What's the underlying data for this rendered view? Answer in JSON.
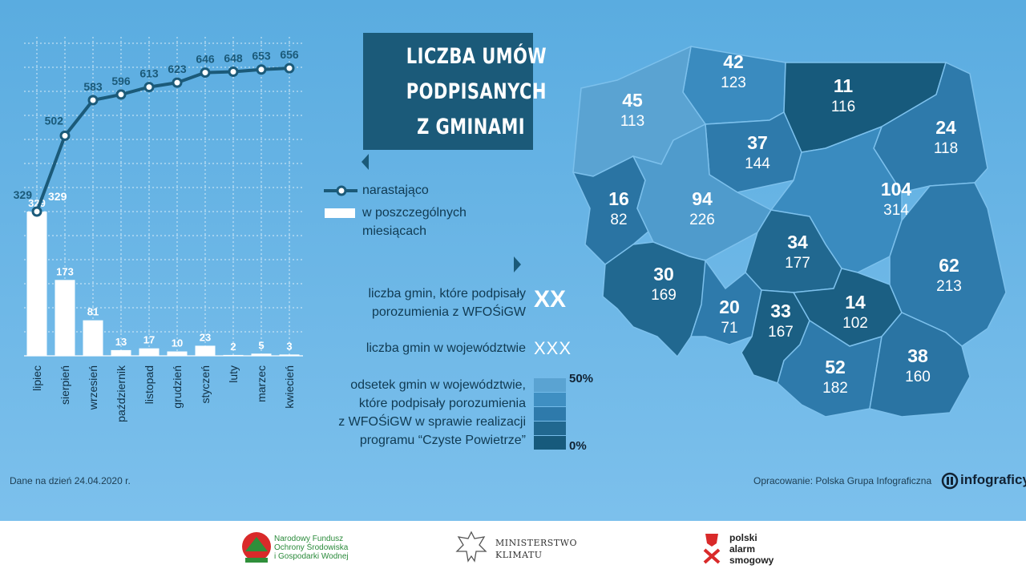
{
  "title_lines": [
    "LICZBA UMÓW",
    "PODPISANYCH",
    "Z GMINAMI"
  ],
  "legend": {
    "cumulative_label": "narastająco",
    "monthly_label_1": "w poszczególnych",
    "monthly_label_2": "miesiącach",
    "signed_label_1": "liczba gmin, które podpisały",
    "signed_label_2": "porozumienia z WFOŚiGW",
    "signed_symbol": "XX",
    "total_label": "liczba gmin w województwie",
    "total_symbol": "XXX",
    "pct_label_1": "odsetek gmin w województwie,",
    "pct_label_2": "które podpisały porozumienia",
    "pct_label_3": "z WFOŚiGW w sprawie realizacji",
    "pct_label_4": "programu “Czyste Powietrze”",
    "scale_max": "50%",
    "scale_min": "0%",
    "colors": [
      "#5aa3d2",
      "#3f8fc2",
      "#2e7aab",
      "#216890",
      "#175a7c"
    ]
  },
  "chart_data": {
    "type": "bar+line",
    "categories": [
      "lipiec",
      "sierpień",
      "wrzesień",
      "październik",
      "listopad",
      "grudzień",
      "styczeń",
      "luty",
      "marzec",
      "kwiecień"
    ],
    "series": [
      {
        "name": "w poszczególnych miesiącach",
        "type": "bar",
        "values": [
          329,
          173,
          81,
          13,
          17,
          10,
          23,
          2,
          5,
          3
        ]
      },
      {
        "name": "narastająco",
        "type": "line",
        "values": [
          329,
          502,
          583,
          596,
          613,
          623,
          646,
          648,
          653,
          656
        ]
      }
    ],
    "ylim": [
      0,
      700
    ],
    "grid": true
  },
  "map_regions": [
    {
      "name": "pomorskie",
      "signed": "42",
      "total": "123",
      "color": "#3a8bbf"
    },
    {
      "name": "warmińsko-mazurskie",
      "signed": "11",
      "total": "116",
      "color": "#175a7c"
    },
    {
      "name": "zachodniopomorskie",
      "signed": "45",
      "total": "113",
      "color": "#5aa3d2"
    },
    {
      "name": "kujawsko-pomorskie",
      "signed": "37",
      "total": "144",
      "color": "#2e7aab"
    },
    {
      "name": "podlaskie",
      "signed": "24",
      "total": "118",
      "color": "#2e7aab"
    },
    {
      "name": "lubuskie",
      "signed": "16",
      "total": "82",
      "color": "#2a74a3"
    },
    {
      "name": "wielkopolskie",
      "signed": "94",
      "total": "226",
      "color": "#4f9bcc"
    },
    {
      "name": "mazowieckie",
      "signed": "104",
      "total": "314",
      "color": "#3a8bbf"
    },
    {
      "name": "łódzkie",
      "signed": "34",
      "total": "177",
      "color": "#216890"
    },
    {
      "name": "dolnośląskie",
      "signed": "30",
      "total": "169",
      "color": "#216890"
    },
    {
      "name": "opolskie",
      "signed": "20",
      "total": "71",
      "color": "#2e7aab"
    },
    {
      "name": "śląskie",
      "signed": "33",
      "total": "167",
      "color": "#1b5f83"
    },
    {
      "name": "świętokrzyskie",
      "signed": "14",
      "total": "102",
      "color": "#1b5f83"
    },
    {
      "name": "lubelskie",
      "signed": "62",
      "total": "213",
      "color": "#2e7aab"
    },
    {
      "name": "małopolskie",
      "signed": "52",
      "total": "182",
      "color": "#2e7aab"
    },
    {
      "name": "podkarpackie",
      "signed": "38",
      "total": "160",
      "color": "#2a74a3"
    }
  ],
  "notes": {
    "date_note": "Dane na dzień 24.04.2020 r.",
    "credit": "Opracowanie: Polska Grupa Infograficzna",
    "brand": "infograficy.p"
  },
  "footer": {
    "nfos_1": "Narodowy Fundusz",
    "nfos_2": "Ochrony Środowiska",
    "nfos_3": "i Gospodarki Wodnej",
    "ministry_1": "MINISTERSTWO",
    "ministry_2": "KLIMATU",
    "pas_1": "polski",
    "pas_2": "alarm",
    "pas_3": "smogowy"
  }
}
